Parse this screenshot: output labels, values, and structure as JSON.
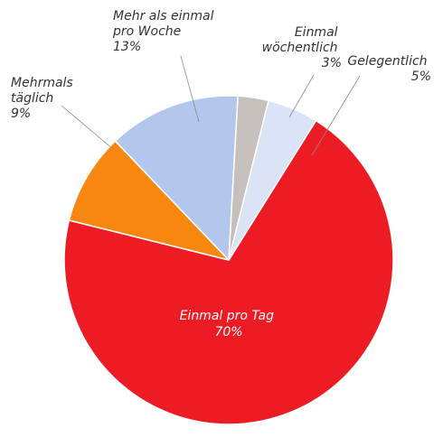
{
  "chart_data": {
    "type": "pie",
    "title": "",
    "slices": [
      {
        "label": "Einmal pro Tag",
        "value": 70,
        "value_label": "70%",
        "color": "#ed1c24"
      },
      {
        "label": "Mehrmals täglich",
        "value": 9,
        "value_label": "9%",
        "color": "#f7870f"
      },
      {
        "label": "Mehr als einmal pro Woche",
        "value": 13,
        "value_label": "13%",
        "color": "#b3c6ec"
      },
      {
        "label": "Einmal wöchentlich",
        "value": 3,
        "value_label": "3%",
        "color": "#c6c0bc"
      },
      {
        "label": "Gelegentlich",
        "value": 5,
        "value_label": "5%",
        "color": "#dbe3f6"
      }
    ]
  },
  "labels": {
    "tag": {
      "lines": [
        "Einmal pro Tag"
      ],
      "pct": "70%"
    },
    "mehrmals": {
      "lines": [
        "Mehrmals",
        "täglich"
      ],
      "pct": "9%"
    },
    "woche": {
      "lines": [
        "Mehr als einmal",
        "pro Woche"
      ],
      "pct": "13%"
    },
    "einmal": {
      "lines": [
        "Einmal",
        "wöchentlich"
      ],
      "pct": "3%"
    },
    "gelegentlich": {
      "lines": [
        "Gelegentlich"
      ],
      "pct": "5%"
    }
  }
}
